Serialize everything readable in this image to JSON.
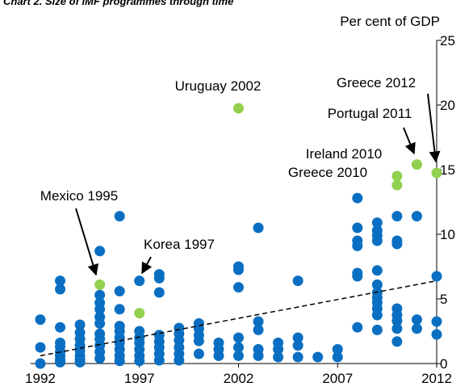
{
  "chart_data": {
    "type": "scatter",
    "title": "Chart 2. Size of IMF  programmes through time",
    "y_label": "Per cent of GDP",
    "xlim": [
      1991.5,
      2012
    ],
    "xticks": [
      1992,
      1997,
      2002,
      2007,
      2012
    ],
    "ylim": [
      0,
      25
    ],
    "yticks": [
      0,
      5,
      10,
      15,
      20,
      25
    ],
    "series": [
      {
        "color": "#0a6fc2",
        "x": [
          1992,
          1992,
          1992,
          1993,
          1993,
          1993,
          1993,
          1993,
          1993,
          1993,
          1993,
          1993,
          1994,
          1994,
          1994,
          1994,
          1994,
          1994,
          1994,
          1994,
          1995,
          1995,
          1995,
          1995,
          1995,
          1995,
          1995,
          1995,
          1995,
          1995,
          1995,
          1996,
          1996,
          1996,
          1996,
          1996,
          1996,
          1996,
          1996,
          1996,
          1996,
          1997,
          1997,
          1997,
          1997,
          1997,
          1997,
          1997,
          1998,
          1998,
          1998,
          1998,
          1998,
          1998,
          1998,
          1998,
          1999,
          1999,
          1999,
          1999,
          1999,
          1999,
          2000,
          2000,
          2000,
          2000,
          2000,
          2001,
          2001,
          2001,
          2002,
          2002,
          2002,
          2002,
          2002,
          2002,
          2003,
          2003,
          2003,
          2003,
          2003,
          2004,
          2004,
          2004,
          2005,
          2005,
          2005,
          2005,
          2006,
          2007,
          2007,
          2008,
          2008,
          2008,
          2008,
          2008,
          2008,
          2008,
          2009,
          2009,
          2009,
          2009,
          2009,
          2009,
          2009,
          2009,
          2009,
          2009,
          2009,
          2009,
          2010,
          2010,
          2010,
          2010,
          2010,
          2010,
          2010,
          2010,
          2011,
          2011,
          2011,
          2012,
          2012,
          2012
        ],
        "values": [
          3.4,
          1.25,
          0,
          6.4,
          5.75,
          2.8,
          1.6,
          1.3,
          0.9,
          0.6,
          0.3,
          0.1,
          3.0,
          2.4,
          1.9,
          1.4,
          1.0,
          0.6,
          0.3,
          0.1,
          8.7,
          5.3,
          4.7,
          4.2,
          3.6,
          3.1,
          2.3,
          1.9,
          1.4,
          0.9,
          0.4,
          11.4,
          5.6,
          4.2,
          2.9,
          2.5,
          2.0,
          1.6,
          1.1,
          0.6,
          0.2,
          6.4,
          2.5,
          2.0,
          1.6,
          1.1,
          0.6,
          0.2,
          6.9,
          6.6,
          5.5,
          2.2,
          1.7,
          1.25,
          0.75,
          0.25,
          2.75,
          2.3,
          1.8,
          1.25,
          0.75,
          0.25,
          3.1,
          2.7,
          2.2,
          1.75,
          0.75,
          1.6,
          1.1,
          0.6,
          7.5,
          7.25,
          5.9,
          2.0,
          1.25,
          0.6,
          10.5,
          3.25,
          2.6,
          1.1,
          0.6,
          1.6,
          1.1,
          0.5,
          6.4,
          2.0,
          1.4,
          0.5,
          0.5,
          1.1,
          0.5,
          12.8,
          10.5,
          9.5,
          9.1,
          7.0,
          6.75,
          2.8,
          10.9,
          10.3,
          9.9,
          9.5,
          7.2,
          6.1,
          5.5,
          5.1,
          4.7,
          4.25,
          3.75,
          2.6,
          11.4,
          9.5,
          9.25,
          4.25,
          3.75,
          3.3,
          2.7,
          1.7,
          11.4,
          3.4,
          2.7,
          6.75,
          3.25,
          2.25
        ]
      },
      {
        "color": "#92d050",
        "x": [
          1995,
          1997,
          2002,
          2010,
          2010,
          2011,
          2012
        ],
        "values": [
          6.1,
          3.9,
          19.75,
          14.5,
          13.8,
          15.4,
          14.75
        ]
      }
    ],
    "trendline": {
      "x": [
        1992,
        2012
      ],
      "values": [
        0.6,
        6.4
      ]
    },
    "annotations": [
      "Uruguay 2002",
      "Greece 2012",
      "Portugal 2011",
      "Ireland 2010",
      "Greece 2010",
      "Mexico 1995",
      "Korea 1997"
    ]
  }
}
